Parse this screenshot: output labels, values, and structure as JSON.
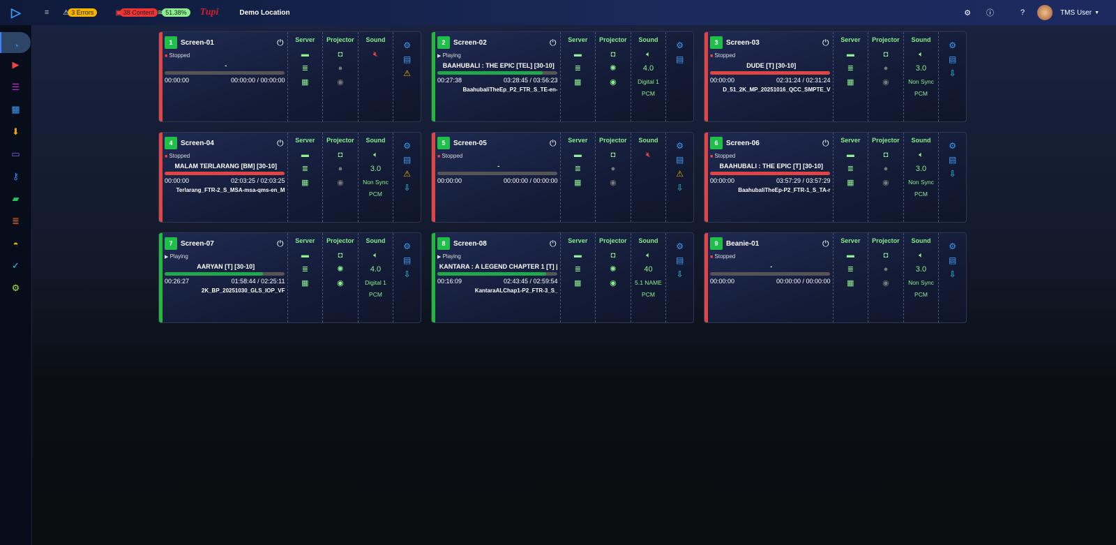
{
  "header": {
    "errors": "3 Errors",
    "content": "38 Content",
    "storage": "51.38%",
    "location": "Demo Location",
    "user": "TMS User",
    "logo_text": "Tupi"
  },
  "sidebar": [
    "dashboard",
    "play",
    "playlist-add",
    "calendar",
    "download",
    "monitor",
    "keys",
    "folder",
    "server",
    "gauge",
    "bookmark-check",
    "settings-chat"
  ],
  "labels": {
    "server": "Server",
    "projector": "Projector",
    "sound": "Sound"
  },
  "colors": {
    "stopped": "#e04545",
    "playing": "#22b83a",
    "num": "#1fbf4a"
  },
  "screens": [
    {
      "num": "1",
      "name": "Screen-01",
      "state": "Stopped",
      "title": "-",
      "elapsed": "00:00:00",
      "total": "00:00:00 / 00:00:00",
      "file": "",
      "progress": 0,
      "bar": "gray",
      "lamp": false,
      "muted": true,
      "sound": "",
      "mode": "",
      "fmt": "",
      "actions": [
        "gear",
        "report",
        "warning"
      ]
    },
    {
      "num": "2",
      "name": "Screen-02",
      "state": "Playing",
      "title": "BAAHUBALI : THE EPIC [TEL] [30-10]",
      "elapsed": "00:27:38",
      "total": "03:28:45 / 03:56:23",
      "file": "BaahubaliTheEp_P2_FTR_S_TE-en-",
      "progress": 0.88,
      "bar": "green",
      "lamp": true,
      "muted": false,
      "sound": "4.0",
      "mode": "Digital 1",
      "fmt": "PCM",
      "actions": [
        "gear",
        "report"
      ]
    },
    {
      "num": "3",
      "name": "Screen-03",
      "state": "Stopped",
      "title": "DUDE [T] [30-10]",
      "elapsed": "00:00:00",
      "total": "02:31:24 / 02:31:24",
      "file": "D_51_2K_MP_20251016_QCC_SMPTE_V",
      "progress": 1,
      "bar": "red",
      "lamp": false,
      "muted": false,
      "sound": "3.0",
      "mode": "Non Sync",
      "fmt": "PCM",
      "actions": [
        "gear",
        "report",
        "download"
      ]
    },
    {
      "num": "4",
      "name": "Screen-04",
      "state": "Stopped",
      "title": "MALAM TERLARANG [BM] [30-10]",
      "elapsed": "00:00:00",
      "total": "02:03:25 / 02:03:25",
      "file": "Terlarang_FTR-2_S_MSA-msa-qms-en_M",
      "progress": 1,
      "bar": "red",
      "lamp": false,
      "muted": false,
      "sound": "3.0",
      "mode": "Non Sync",
      "fmt": "PCM",
      "actions": [
        "gear",
        "report",
        "warning",
        "download"
      ]
    },
    {
      "num": "5",
      "name": "Screen-05",
      "state": "Stopped",
      "title": "-",
      "elapsed": "00:00:00",
      "total": "00:00:00 / 00:00:00",
      "file": "",
      "progress": 0,
      "bar": "gray",
      "lamp": false,
      "muted": true,
      "sound": "",
      "mode": "",
      "fmt": "",
      "actions": [
        "gear",
        "report",
        "warning",
        "download"
      ]
    },
    {
      "num": "6",
      "name": "Screen-06",
      "state": "Stopped",
      "title": "BAAHUBALI : THE EPIC [T] [30-10]",
      "elapsed": "00:00:00",
      "total": "03:57:29 / 03:57:29",
      "file": "BaahubaliTheEp-P2_FTR-1_S_TA-r",
      "progress": 1,
      "bar": "red",
      "lamp": false,
      "muted": false,
      "sound": "3.0",
      "mode": "Non Sync",
      "fmt": "PCM",
      "actions": [
        "gear",
        "report",
        "download"
      ]
    },
    {
      "num": "7",
      "name": "Screen-07",
      "state": "Playing",
      "title": "AARYAN [T] [30-10]",
      "elapsed": "00:26:27",
      "total": "01:58:44 / 02:25:11",
      "file": "2K_BP_20251030_GLS_IOP_VF",
      "progress": 0.82,
      "bar": "green",
      "lamp": true,
      "muted": false,
      "sound": "4.0",
      "mode": "Digital 1",
      "fmt": "PCM",
      "actions": [
        "gear",
        "report",
        "download"
      ]
    },
    {
      "num": "8",
      "name": "Screen-08",
      "state": "Playing",
      "title": "KANTARA : A LEGEND CHAPTER 1 [T] |",
      "elapsed": "00:16:09",
      "total": "02:43:45 / 02:59:54",
      "file": "KantaraALChap1-P2_FTR-3_S_",
      "progress": 0.91,
      "bar": "green",
      "lamp": true,
      "muted": false,
      "sound": "40",
      "mode": "5.1 NAME",
      "fmt": "PCM",
      "actions": [
        "gear",
        "report",
        "download"
      ]
    },
    {
      "num": "9",
      "name": "Beanie-01",
      "state": "Stopped",
      "title": "-",
      "elapsed": "00:00:00",
      "total": "00:00:00 / 00:00:00",
      "file": "",
      "progress": 0,
      "bar": "gray",
      "lamp": false,
      "muted": false,
      "sound": "3.0",
      "mode": "Non Sync",
      "fmt": "PCM",
      "actions": [
        "gear",
        "report",
        "download"
      ]
    }
  ]
}
